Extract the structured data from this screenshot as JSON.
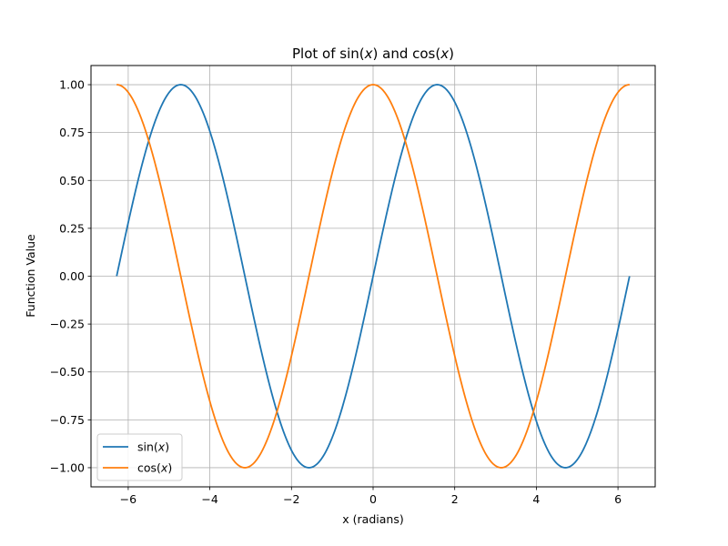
{
  "chart_data": {
    "type": "line",
    "title": "Plot of sin(x) and cos(x)",
    "title_parts": [
      "Plot of sin(",
      "x",
      ") and cos(",
      "x",
      ")"
    ],
    "xlabel": "x (radians)",
    "ylabel": "Function Value",
    "xlim": [
      -6.912,
      6.912
    ],
    "ylim": [
      -1.1,
      1.1
    ],
    "x_range": [
      -6.283,
      6.283
    ],
    "x_ticks": [
      -6,
      -4,
      -2,
      0,
      2,
      4,
      6
    ],
    "x_tick_labels": [
      "−6",
      "−4",
      "−2",
      "0",
      "2",
      "4",
      "6"
    ],
    "y_ticks": [
      -1.0,
      -0.75,
      -0.5,
      -0.25,
      0.0,
      0.25,
      0.5,
      0.75,
      1.0
    ],
    "y_tick_labels": [
      "−1.00",
      "−0.75",
      "−0.50",
      "−0.25",
      "0.00",
      "0.25",
      "0.50",
      "0.75",
      "1.00"
    ],
    "grid": true,
    "legend_position": "lower-left",
    "series": [
      {
        "name": "sin(x)",
        "legend_parts": [
          "sin(",
          "x",
          ")"
        ],
        "color": "#1f77b4",
        "x": [
          -6.283,
          -5.498,
          -4.712,
          -3.927,
          -3.142,
          -2.356,
          -1.571,
          -0.785,
          0.0,
          0.785,
          1.571,
          2.356,
          3.142,
          3.927,
          4.712,
          5.498,
          6.283
        ],
        "y": [
          0.0,
          0.707,
          1.0,
          0.707,
          0.0,
          -0.707,
          -1.0,
          -0.707,
          0.0,
          0.707,
          1.0,
          0.707,
          0.0,
          -0.707,
          -1.0,
          -0.707,
          0.0
        ]
      },
      {
        "name": "cos(x)",
        "legend_parts": [
          "cos(",
          "x",
          ")"
        ],
        "color": "#ff7f0e",
        "x": [
          -6.283,
          -5.498,
          -4.712,
          -3.927,
          -3.142,
          -2.356,
          -1.571,
          -0.785,
          0.0,
          0.785,
          1.571,
          2.356,
          3.142,
          3.927,
          4.712,
          5.498,
          6.283
        ],
        "y": [
          1.0,
          0.707,
          0.0,
          -0.707,
          -1.0,
          -0.707,
          0.0,
          0.707,
          1.0,
          0.707,
          0.0,
          -0.707,
          -1.0,
          -0.707,
          0.0,
          0.707,
          1.0
        ]
      }
    ]
  }
}
